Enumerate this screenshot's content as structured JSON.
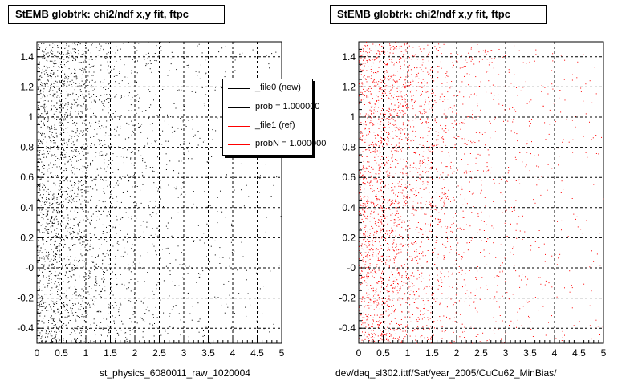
{
  "chart_data": [
    {
      "type": "scatter",
      "title": "StEMB globtrk: chi2/ndf x,y fit, ftpc",
      "xlabel": "st_physics_6080011_raw_1020004",
      "ylabel": "",
      "xlim": [
        0,
        5
      ],
      "ylim": [
        -0.5,
        1.5
      ],
      "x_ticks": [
        "0",
        "0.5",
        "1",
        "1.5",
        "2",
        "2.5",
        "3",
        "3.5",
        "4",
        "4.5",
        "5"
      ],
      "y_ticks": [
        "-0.4",
        "-0.2",
        "-0",
        "0.2",
        "0.4",
        "0.6",
        "0.8",
        "1",
        "1.2",
        "1.4"
      ],
      "grid": true,
      "point_color": "#000000",
      "density_profile": {
        "x_bins": [
          0.25,
          0.75,
          1.25,
          1.75,
          2.25,
          2.75,
          3.25,
          3.75,
          4.25,
          4.75
        ],
        "relative_density": [
          1.0,
          0.78,
          0.45,
          0.28,
          0.2,
          0.14,
          0.1,
          0.07,
          0.05,
          0.04
        ]
      },
      "legend": {
        "placement": "top-right",
        "entries": [
          {
            "label": "_file0 (new)",
            "color": "#000000"
          },
          {
            "label": "prob = 1.000000",
            "color": "#000000"
          },
          {
            "label": "_file1 (ref)",
            "color": "#ff0000"
          },
          {
            "label": "probN = 1.000000",
            "color": "#ff0000"
          }
        ]
      }
    },
    {
      "type": "scatter",
      "title": "StEMB globtrk: chi2/ndf x,y fit, ftpc",
      "xlabel": "dev/daq_sl302.ittf/Sat/year_2005/CuCu62_MinBias/",
      "ylabel": "",
      "xlim": [
        0,
        5
      ],
      "ylim": [
        -0.5,
        1.5
      ],
      "x_ticks": [
        "0",
        "0.5",
        "1",
        "1.5",
        "2",
        "2.5",
        "3",
        "3.5",
        "4",
        "4.5",
        "5"
      ],
      "y_ticks": [
        "-0.4",
        "-0.2",
        "-0",
        "0.2",
        "0.4",
        "0.6",
        "0.8",
        "1",
        "1.2",
        "1.4"
      ],
      "grid": true,
      "point_color": "#ff0000",
      "density_profile": {
        "x_bins": [
          0.25,
          0.75,
          1.25,
          1.75,
          2.25,
          2.75,
          3.25,
          3.75,
          4.25,
          4.75
        ],
        "relative_density": [
          1.0,
          0.8,
          0.5,
          0.32,
          0.22,
          0.15,
          0.11,
          0.08,
          0.06,
          0.05
        ]
      }
    }
  ]
}
